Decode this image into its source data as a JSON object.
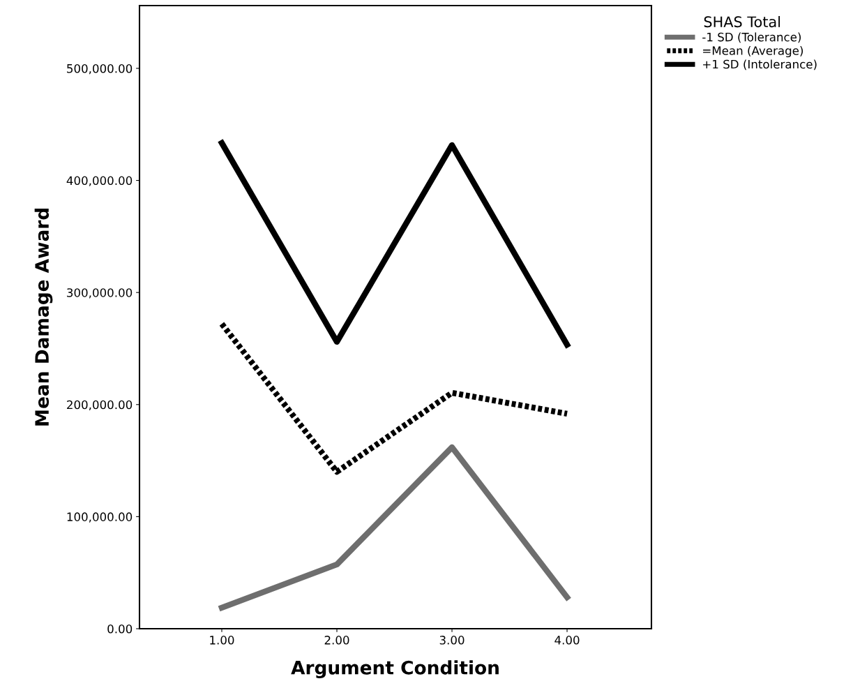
{
  "chart_data": {
    "type": "line",
    "xlabel": "Argument Condition",
    "ylabel": "Mean Damage Award",
    "legend_title": "SHAS Total",
    "x": [
      1,
      2,
      3,
      4
    ],
    "series": [
      {
        "name": "-1 SD (Tolerance)",
        "color": "#6e6e6e",
        "line_style": "solid",
        "values": [
          18700,
          57300,
          161900,
          28000
        ]
      },
      {
        "name": "=Mean (Average)",
        "color": "#000000",
        "line_style": "dotted",
        "values": [
          272000,
          140000,
          210500,
          191800
        ]
      },
      {
        "name": "+1 SD (Intolerance)",
        "color": "#000000",
        "line_style": "solid",
        "values": [
          433400,
          256000,
          431500,
          253400
        ]
      }
    ],
    "xlim": [
      0.285,
      4.733
    ],
    "ylim": [
      0,
      556000
    ],
    "xticks": [
      {
        "value": 1,
        "label": "1.00"
      },
      {
        "value": 2,
        "label": "2.00"
      },
      {
        "value": 3,
        "label": "3.00"
      },
      {
        "value": 4,
        "label": "4.00"
      }
    ],
    "yticks": [
      {
        "value": 0,
        "label": "0.00"
      },
      {
        "value": 100000,
        "label": "100,000.00"
      },
      {
        "value": 200000,
        "label": "200,000.00"
      },
      {
        "value": 300000,
        "label": "300,000.00"
      },
      {
        "value": 400000,
        "label": "400,000.00"
      },
      {
        "value": 500000,
        "label": "500,000.00"
      }
    ],
    "grid": false,
    "legend": "top right",
    "marker": "none"
  }
}
